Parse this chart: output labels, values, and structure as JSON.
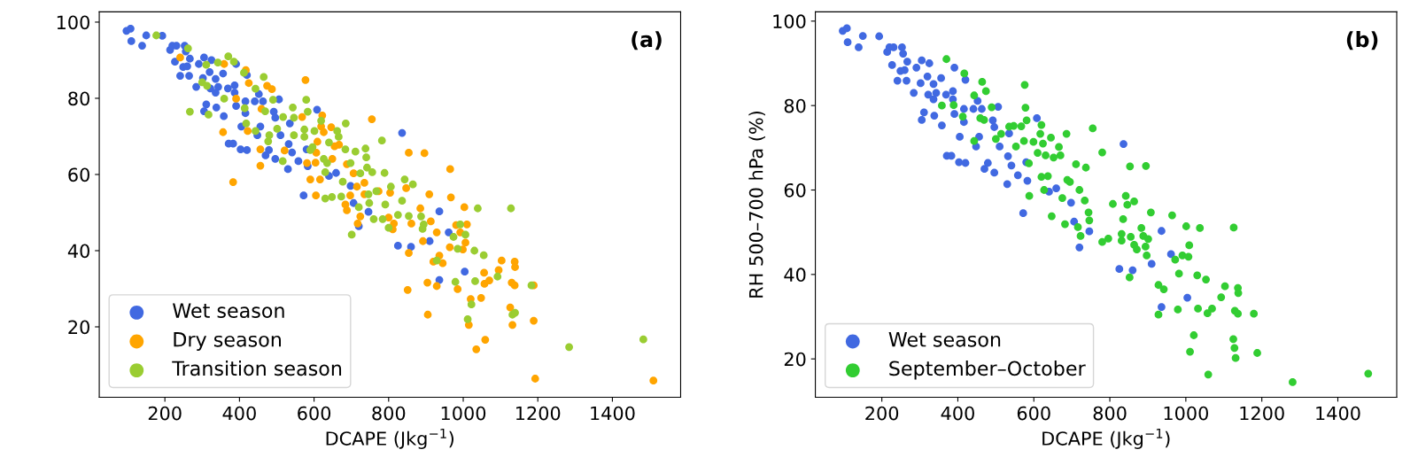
{
  "chart_data": [
    {
      "type": "scatter",
      "xlabel": "DCAPE (Jkg$^{−1}$)",
      "annotations": [
        "(a)"
      ],
      "xlim": [
        24,
        1583
      ],
      "ylim": [
        1.5,
        102.7
      ],
      "xticks": [
        200,
        400,
        600,
        800,
        1000,
        1200,
        1400
      ],
      "yticks": [
        20,
        40,
        60,
        80,
        100
      ],
      "legend": "bottom left",
      "marker": "circle",
      "grid": false,
      "series": [
        {
          "name": "Wet season",
          "color": "#4169e1",
          "x": [
            97,
            108,
            110,
            139,
            150,
            193,
            214,
            220,
            231,
            253,
            256,
            267,
            227,
            249,
            260,
            241,
            265,
            284,
            291,
            305,
            325,
            320,
            302,
            336,
            356,
            322,
            343,
            369,
            387,
            387,
            336,
            391,
            420,
            311,
            305,
            338,
            358,
            391,
            416,
            441,
            463,
            452,
            506,
            492,
            496,
            456,
            448,
            416,
            405,
            371,
            383,
            403,
            420,
            479,
            470,
            496,
            510,
            532,
            541,
            558,
            530,
            583,
            580,
            608,
            640,
            659,
            698,
            706,
            746,
            720,
            836,
            825,
            860,
            535,
            572,
            936,
            961,
            910,
            1004,
            936
          ],
          "values": [
            97.7,
            98.3,
            95.0,
            93.8,
            96.5,
            96.4,
            92.7,
            93.8,
            93.8,
            93.8,
            92.3,
            90.4,
            89.6,
            88.2,
            88.4,
            85.9,
            85.9,
            83.0,
            89.0,
            90.7,
            90.0,
            86.9,
            85.3,
            85.1,
            86.5,
            82.6,
            83.0,
            82.6,
            83.4,
            81.5,
            81.5,
            89.0,
            86.1,
            78.4,
            76.6,
            77.6,
            75.3,
            78.0,
            79.2,
            79.2,
            79.2,
            81.1,
            79.7,
            76.5,
            74.9,
            72.6,
            70.3,
            76.1,
            72.6,
            68.1,
            68.1,
            66.6,
            66.4,
            66.4,
            65.0,
            64.1,
            70.3,
            68.0,
            65.8,
            63.5,
            61.4,
            62.2,
            66.6,
            77.0,
            59.6,
            60.4,
            57.0,
            52.5,
            50.2,
            46.4,
            70.9,
            41.3,
            41.0,
            73.4,
            54.5,
            50.3,
            44.8,
            42.5,
            34.5,
            32.3
          ]
        },
        {
          "name": "Dry season",
          "color": "#ffa500",
          "x": [
            241,
            359,
            417,
            425,
            474,
            487,
            391,
            459,
            577,
            568,
            622,
            619,
            646,
            626,
            755,
            854,
            356,
            422,
            456,
            456,
            521,
            581,
            606,
            604,
            649,
            609,
            667,
            655,
            688,
            706,
            590,
            616,
            605,
            684,
            697,
            715,
            735,
            735,
            773,
            804,
            847,
            688,
            724,
            717,
            800,
            814,
            811,
            861,
            854,
            383,
            896,
            965,
            909,
            967,
            1003,
            885,
            913,
            929,
            892,
            981,
            1010,
            992,
            1006,
            999,
            964,
            936,
            920,
            945,
            1103,
            1138,
            1139,
            1056,
            1095,
            904,
            929,
            985,
            1070,
            1057,
            1130,
            1138,
            1189,
            851,
            1020,
            1048,
            1126,
            1132,
            1015,
            1189,
            905,
            1059,
            1035,
            1193,
            1510
          ],
          "values": [
            90.7,
            89.0,
            87.4,
            84.0,
            83.3,
            82.4,
            79.9,
            77.2,
            84.8,
            75.1,
            75.5,
            72.6,
            72.4,
            71.1,
            74.5,
            65.7,
            71.1,
            71.4,
            66.6,
            62.3,
            66.3,
            63.0,
            65.7,
            63.1,
            64.1,
            68.6,
            67.8,
            67.4,
            62.7,
            60.3,
            58.7,
            58.7,
            54.5,
            52.1,
            54.5,
            56.8,
            57.8,
            54.8,
            55.6,
            55.2,
            56.4,
            50.6,
            49.0,
            47.1,
            48.7,
            47.1,
            45.6,
            47.1,
            39.4,
            58.0,
            65.6,
            61.4,
            54.8,
            54.0,
            51.4,
            51.1,
            47.7,
            44.8,
            42.5,
            46.7,
            46.9,
            44.8,
            42.1,
            40.3,
            40.9,
            38.7,
            37.1,
            36.7,
            37.4,
            37.1,
            35.7,
            34.2,
            34.9,
            31.6,
            30.7,
            29.9,
            32.2,
            31.3,
            31.6,
            30.9,
            30.9,
            29.7,
            27.3,
            27.6,
            25.1,
            20.5,
            20.5,
            21.6,
            23.2,
            16.6,
            14.1,
            6.4,
            5.9
          ]
        },
        {
          "name": "Transition season",
          "color": "#9acd32",
          "x": [
            177,
            262,
            311,
            342,
            370,
            385,
            412,
            465,
            443,
            300,
            313,
            359,
            267,
            317,
            414,
            418,
            443,
            469,
            490,
            480,
            477,
            501,
            517,
            543,
            546,
            583,
            579,
            574,
            574,
            546,
            601,
            619,
            685,
            662,
            666,
            640,
            590,
            596,
            626,
            635,
            630,
            684,
            711,
            738,
            740,
            698,
            724,
            742,
            756,
            782,
            789,
            806,
            843,
            865,
            677,
            746,
            767,
            748,
            791,
            836,
            630,
            648,
            673,
            516,
            720,
            760,
            784,
            825,
            854,
            800,
            701,
            887,
            894,
            891,
            929,
            992,
            1006,
            974,
            985,
            1030,
            1055,
            1039,
            1128,
            1092,
            1032,
            979,
            1022,
            1012,
            1132,
            1139,
            1183,
            1284,
            1483
          ],
          "values": [
            96.5,
            93.1,
            88.8,
            89.4,
            91.0,
            89.6,
            86.7,
            85.6,
            82.5,
            84.2,
            83.3,
            79.9,
            76.5,
            75.7,
            77.4,
            73.4,
            71.4,
            76.6,
            79.6,
            70.3,
            68.7,
            72.0,
            75.1,
            77.6,
            74.9,
            76.5,
            79.6,
            71.8,
            69.9,
            70.3,
            71.4,
            74.1,
            73.4,
            71.4,
            69.9,
            68.4,
            66.4,
            67.2,
            64.1,
            63.0,
            60.6,
            66.6,
            66.0,
            66.8,
            64.5,
            63.0,
            60.3,
            61.8,
            60.6,
            68.9,
            60.4,
            56.8,
            58.7,
            57.4,
            58.1,
            54.8,
            55.6,
            52.5,
            52.1,
            53.1,
            53.7,
            54.1,
            54.2,
            63.5,
            51.4,
            48.3,
            48.3,
            49.4,
            49.1,
            46.0,
            44.2,
            49.0,
            46.9,
            45.7,
            37.4,
            46.9,
            44.2,
            43.6,
            40.5,
            40.0,
            38.8,
            51.1,
            51.1,
            33.2,
            32.0,
            31.8,
            25.9,
            22.0,
            23.2,
            23.7,
            30.9,
            14.7,
            16.7
          ]
        }
      ]
    },
    {
      "type": "scatter",
      "xlabel": "DCAPE (Jkg$^{−1}$)",
      "ylabel": "RH 500–700 hPa (%)",
      "annotations": [
        "(b)"
      ],
      "xlim": [
        25,
        1555
      ],
      "ylim": [
        10.9,
        102.2
      ],
      "xticks": [
        200,
        400,
        600,
        800,
        1000,
        1200,
        1400
      ],
      "yticks": [
        20,
        40,
        60,
        80,
        100
      ],
      "legend": "bottom left",
      "marker": "circle",
      "grid": false,
      "series": [
        {
          "name": "Wet season",
          "color": "#4169e1",
          "x": [
            97,
            108,
            110,
            139,
            150,
            193,
            214,
            220,
            231,
            253,
            256,
            267,
            227,
            249,
            260,
            241,
            265,
            284,
            291,
            305,
            325,
            320,
            302,
            336,
            356,
            322,
            343,
            369,
            387,
            387,
            336,
            391,
            420,
            311,
            305,
            338,
            358,
            391,
            416,
            441,
            463,
            452,
            506,
            492,
            496,
            456,
            448,
            416,
            405,
            371,
            383,
            403,
            420,
            479,
            470,
            496,
            510,
            532,
            541,
            558,
            530,
            583,
            580,
            608,
            640,
            659,
            698,
            706,
            746,
            720,
            836,
            825,
            860,
            535,
            572,
            936,
            961,
            910,
            1004,
            936
          ],
          "values": [
            97.7,
            98.3,
            95.0,
            93.8,
            96.5,
            96.4,
            92.7,
            93.8,
            93.8,
            93.8,
            92.3,
            90.4,
            89.6,
            88.2,
            88.4,
            85.9,
            85.9,
            83.0,
            89.0,
            90.7,
            90.0,
            86.9,
            85.3,
            85.1,
            86.5,
            82.6,
            83.0,
            82.6,
            83.4,
            81.5,
            81.5,
            89.0,
            86.1,
            78.4,
            76.6,
            77.6,
            75.3,
            78.0,
            79.2,
            79.2,
            79.2,
            81.1,
            79.7,
            76.5,
            74.9,
            72.6,
            70.3,
            76.1,
            72.6,
            68.1,
            68.1,
            66.6,
            66.4,
            66.4,
            65.0,
            64.1,
            70.3,
            68.0,
            65.8,
            63.5,
            61.4,
            62.2,
            66.6,
            77.0,
            59.6,
            60.4,
            57.0,
            52.5,
            50.2,
            46.4,
            70.9,
            41.3,
            41.0,
            73.4,
            54.5,
            50.3,
            44.8,
            42.5,
            34.5,
            32.3
          ]
        },
        {
          "name": "September–October",
          "color": "#32cd32",
          "x": [
            370,
            417,
            464,
            474,
            443,
            576,
            578,
            581,
            489,
            358,
            389,
            413,
            459,
            469,
            443,
            500,
            514,
            535,
            547,
            567,
            574,
            553,
            599,
            624,
            610,
            587,
            617,
            620,
            645,
            666,
            670,
            652,
            631,
            686,
            755,
            711,
            737,
            620,
            637,
            627,
            688,
            695,
            720,
            675,
            588,
            647,
            682,
            723,
            716,
            734,
            744,
            746,
            780,
            853,
            895,
            808,
            842,
            846,
            864,
            835,
            908,
            964,
            1001,
            1037,
            1126,
            831,
            831,
            855,
            864,
            871,
            883,
            888,
            901,
            894,
            897,
            796,
            780,
            852,
            972,
            991,
            1007,
            1009,
            982,
            1030,
            1053,
            1103,
            1137,
            1138,
            1093,
            928,
            942,
            979,
            1032,
            1057,
            1069,
            1129,
            1137,
            1179,
            928,
            1021,
            1011,
            1125,
            1128,
            1131,
            1188,
            1059,
            1281,
            1480
          ],
          "values": [
            91.0,
            87.6,
            85.6,
            83.4,
            82.4,
            84.9,
            79.5,
            76.5,
            79.6,
            80.0,
            80.1,
            77.4,
            77.0,
            76.6,
            71.6,
            72.1,
            73.3,
            75.0,
            75.2,
            75.1,
            71.6,
            70.3,
            71.4,
            71.0,
            68.8,
            66.3,
            73.3,
            75.4,
            72.4,
            70.2,
            68.2,
            67.7,
            68.2,
            73.3,
            74.6,
            66.1,
            65.3,
            63.1,
            63.3,
            60.0,
            62.4,
            61.9,
            60.0,
            58.1,
            58.6,
            53.8,
            51.9,
            49.1,
            51.2,
            57.5,
            54.7,
            52.8,
            68.9,
            65.6,
            65.7,
            56.7,
            58.6,
            56.5,
            57.3,
            53.1,
            54.7,
            54.0,
            51.4,
            51.0,
            51.1,
            49.6,
            48.0,
            48.9,
            47.0,
            45.9,
            51.0,
            49.1,
            48.4,
            46.6,
            44.5,
            48.5,
            47.7,
            39.3,
            43.5,
            44.5,
            44.2,
            46.9,
            40.2,
            39.8,
            38.8,
            37.2,
            36.8,
            35.6,
            34.6,
            37.5,
            36.5,
            31.7,
            31.9,
            30.8,
            31.9,
            31.4,
            30.7,
            30.7,
            30.5,
            25.6,
            21.7,
            24.7,
            22.6,
            20.2,
            21.4,
            16.3,
            14.5,
            16.5
          ]
        }
      ]
    }
  ]
}
